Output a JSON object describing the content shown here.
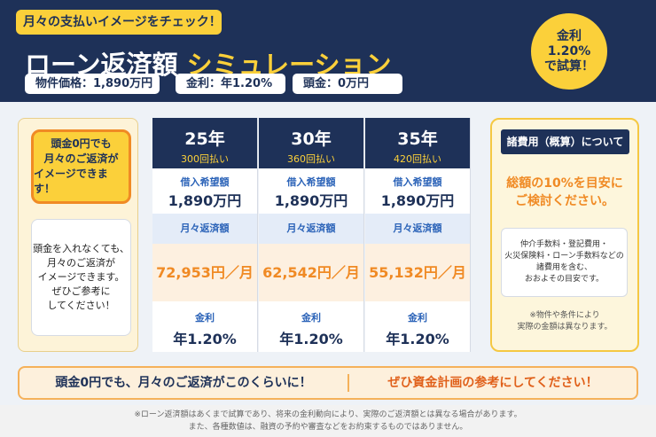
{
  "header": {
    "tag": "月々の支払いイメージをチェック！",
    "title_main": "ローン返済額",
    "title_accent": "シミュレーション",
    "chips": [
      "物件価格：1,890万円",
      "金利：年1.20%",
      "頭金：0万円"
    ],
    "badge": [
      "金利",
      "1.20%",
      "で試算！"
    ]
  },
  "left": {
    "callout": [
      "頭金0円でも",
      "月々のご返済が",
      "イメージできます！"
    ],
    "note": [
      "頭金を入れなくても、",
      "月々のご返済が",
      "イメージできます。",
      "ぜひご参考に",
      "してください！"
    ]
  },
  "table": {
    "columns": [
      {
        "years": "25年",
        "payments": "300回払い",
        "loan_label": "借入希望額",
        "loan": "1,890万円",
        "monthly_label": "月々返済額",
        "monthly": "72,953円／月",
        "rate_label": "金利",
        "rate": "年1.20%"
      },
      {
        "years": "30年",
        "payments": "360回払い",
        "loan_label": "借入希望額",
        "loan": "1,890万円",
        "monthly_label": "月々返済額",
        "monthly": "62,542円／月",
        "rate_label": "金利",
        "rate": "年1.20%"
      },
      {
        "years": "35年",
        "payments": "420回払い",
        "loan_label": "借入希望額",
        "loan": "1,890万円",
        "monthly_label": "月々返済額",
        "monthly": "55,132円／月",
        "rate_label": "金利",
        "rate": "年1.20%"
      }
    ]
  },
  "right": {
    "title": "諸費用（概算）について",
    "headline": [
      "総額の10%を目安に",
      "ご検討ください。"
    ],
    "box": [
      "仲介手数料・登記費用・",
      "火災保険料・ローン手数料などの",
      "諸費用を含む、",
      "おおよその目安です。"
    ],
    "note": [
      "※物件や条件により",
      "実際の金額は異なります。"
    ]
  },
  "banner": {
    "left": "頭金0円でも、月々のご返済がこのくらいに！",
    "right": "ぜひ資金計画の参考にしてください！"
  },
  "footer": [
    "※ローン返済額はあくまで試算であり、将来の金利動向により、実際のご返済額とは異なる場合があります。",
    "また、各種数値は、融資の予約や審査などをお約束するものではありません。"
  ]
}
